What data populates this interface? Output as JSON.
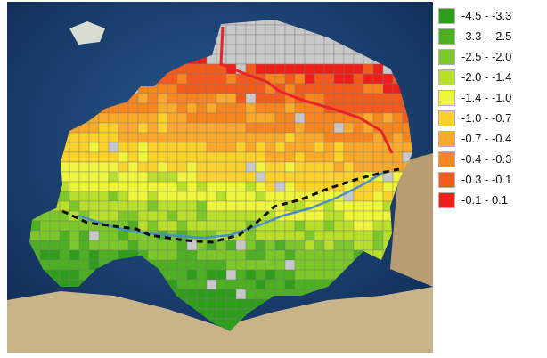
{
  "map": {
    "projection": "orthographic-europe",
    "basemap": "satellite",
    "region": "Europe",
    "no_data_color": "#c8c8c8",
    "overlays": [
      {
        "name": "red-boundary-line",
        "color": "#e8232a"
      },
      {
        "name": "black-dashed-boundary-line",
        "color": "#111111"
      },
      {
        "name": "blue-boundary-line",
        "color": "#4a90c8"
      }
    ]
  },
  "legend": {
    "items": [
      {
        "label": "-4.5 - -3.3",
        "color": "#2e9e1a"
      },
      {
        "label": "-3.3 - -2.5",
        "color": "#4cb020"
      },
      {
        "label": "-2.5 - -2.0",
        "color": "#7cc828"
      },
      {
        "label": "-2.0 - -1.4",
        "color": "#b8e02a"
      },
      {
        "label": "-1.4 - -1.0",
        "color": "#eef53a"
      },
      {
        "label": "-1.0 - -0.7",
        "color": "#fcd22a"
      },
      {
        "label": "-0.7 - -0.4",
        "color": "#fba92a"
      },
      {
        "label": "-0.4 - -0.3",
        "color": "#f8861e"
      },
      {
        "label": "-0.3 - -0.1",
        "color": "#f45a1c"
      },
      {
        "label": "-0.1 - 0.1",
        "color": "#ee1e1a"
      }
    ]
  }
}
